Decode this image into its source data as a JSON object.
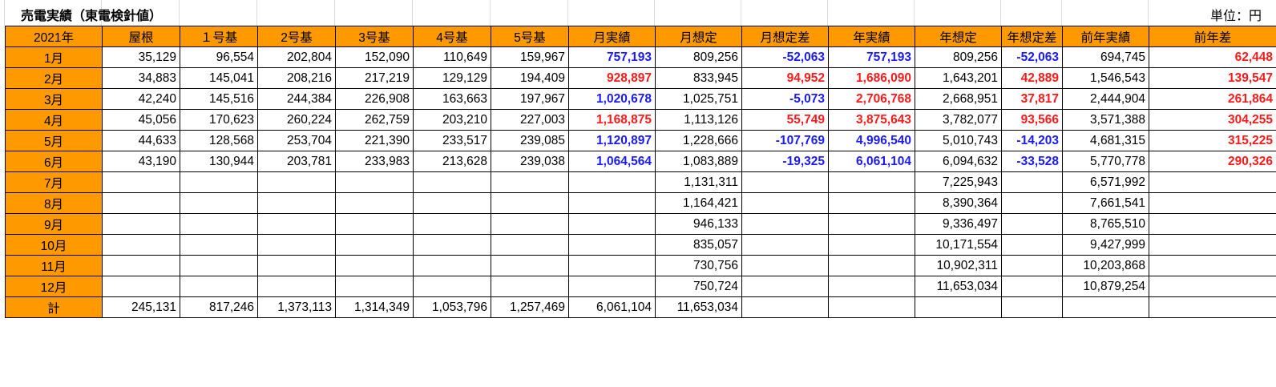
{
  "header": {
    "title": "売電実績（東電検針値）",
    "unit": "単位：円"
  },
  "colors": {
    "header_fill": "#ff9900",
    "negative_blue": "#1a1aff",
    "positive_red": "#ff1a1a",
    "grid": "#000000"
  },
  "table": {
    "columns": [
      "2021年",
      "屋根",
      "１号基",
      "2号基",
      "3号基",
      "4号基",
      "5号基",
      "月実績",
      "月想定",
      "月想定差",
      "年実績",
      "年想定",
      "年想定差",
      "前年実績",
      "前年差"
    ],
    "rows": [
      {
        "label": "1月",
        "cells": [
          "35,129",
          "96,554",
          "202,804",
          "152,090",
          "110,649",
          "159,967",
          "757,193",
          "809,256",
          "-52,063",
          "757,193",
          "809,256",
          "-52,063",
          "694,745",
          "62,448"
        ],
        "styles": [
          "",
          "",
          "",
          "",
          "",
          "",
          "blue",
          "",
          "blue",
          "blue",
          "",
          "blue",
          "",
          "red"
        ]
      },
      {
        "label": "2月",
        "cells": [
          "34,883",
          "145,041",
          "208,216",
          "217,219",
          "129,129",
          "194,409",
          "928,897",
          "833,945",
          "94,952",
          "1,686,090",
          "1,643,201",
          "42,889",
          "1,546,543",
          "139,547"
        ],
        "styles": [
          "",
          "",
          "",
          "",
          "",
          "",
          "red",
          "",
          "red",
          "red",
          "",
          "red",
          "",
          "red"
        ]
      },
      {
        "label": "3月",
        "cells": [
          "42,240",
          "145,516",
          "244,384",
          "226,908",
          "163,663",
          "197,967",
          "1,020,678",
          "1,025,751",
          "-5,073",
          "2,706,768",
          "2,668,951",
          "37,817",
          "2,444,904",
          "261,864"
        ],
        "styles": [
          "",
          "",
          "",
          "",
          "",
          "",
          "blue",
          "",
          "blue",
          "red",
          "",
          "red",
          "",
          "red"
        ]
      },
      {
        "label": "4月",
        "cells": [
          "45,056",
          "170,623",
          "260,224",
          "262,759",
          "203,210",
          "227,003",
          "1,168,875",
          "1,113,126",
          "55,749",
          "3,875,643",
          "3,782,077",
          "93,566",
          "3,571,388",
          "304,255"
        ],
        "styles": [
          "",
          "",
          "",
          "",
          "",
          "",
          "red",
          "",
          "red",
          "red",
          "",
          "red",
          "",
          "red"
        ]
      },
      {
        "label": "5月",
        "cells": [
          "44,633",
          "128,568",
          "253,704",
          "221,390",
          "233,517",
          "239,085",
          "1,120,897",
          "1,228,666",
          "-107,769",
          "4,996,540",
          "5,010,743",
          "-14,203",
          "4,681,315",
          "315,225"
        ],
        "styles": [
          "",
          "",
          "",
          "",
          "",
          "",
          "blue",
          "",
          "blue",
          "blue",
          "",
          "blue",
          "",
          "red"
        ]
      },
      {
        "label": "6月",
        "cells": [
          "43,190",
          "130,944",
          "203,781",
          "233,983",
          "213,628",
          "239,038",
          "1,064,564",
          "1,083,889",
          "-19,325",
          "6,061,104",
          "6,094,632",
          "-33,528",
          "5,770,778",
          "290,326"
        ],
        "styles": [
          "",
          "",
          "",
          "",
          "",
          "",
          "blue",
          "",
          "blue",
          "blue",
          "",
          "blue",
          "",
          "red"
        ]
      },
      {
        "label": "7月",
        "cells": [
          "",
          "",
          "",
          "",
          "",
          "",
          "",
          "1,131,311",
          "",
          "",
          "7,225,943",
          "",
          "6,571,992",
          ""
        ],
        "styles": [
          "",
          "",
          "",
          "",
          "",
          "",
          "",
          "",
          "",
          "",
          "",
          "",
          "",
          ""
        ]
      },
      {
        "label": "8月",
        "cells": [
          "",
          "",
          "",
          "",
          "",
          "",
          "",
          "1,164,421",
          "",
          "",
          "8,390,364",
          "",
          "7,661,541",
          ""
        ],
        "styles": [
          "",
          "",
          "",
          "",
          "",
          "",
          "",
          "",
          "",
          "",
          "",
          "",
          "",
          ""
        ]
      },
      {
        "label": "9月",
        "cells": [
          "",
          "",
          "",
          "",
          "",
          "",
          "",
          "946,133",
          "",
          "",
          "9,336,497",
          "",
          "8,765,510",
          ""
        ],
        "styles": [
          "",
          "",
          "",
          "",
          "",
          "",
          "",
          "",
          "",
          "",
          "",
          "",
          "",
          ""
        ]
      },
      {
        "label": "10月",
        "cells": [
          "",
          "",
          "",
          "",
          "",
          "",
          "",
          "835,057",
          "",
          "",
          "10,171,554",
          "",
          "9,427,999",
          ""
        ],
        "styles": [
          "",
          "",
          "",
          "",
          "",
          "",
          "",
          "",
          "",
          "",
          "",
          "",
          "",
          ""
        ]
      },
      {
        "label": "11月",
        "cells": [
          "",
          "",
          "",
          "",
          "",
          "",
          "",
          "730,756",
          "",
          "",
          "10,902,311",
          "",
          "10,203,868",
          ""
        ],
        "styles": [
          "",
          "",
          "",
          "",
          "",
          "",
          "",
          "",
          "",
          "",
          "",
          "",
          "",
          ""
        ]
      },
      {
        "label": "12月",
        "cells": [
          "",
          "",
          "",
          "",
          "",
          "",
          "",
          "750,724",
          "",
          "",
          "11,653,034",
          "",
          "10,879,254",
          ""
        ],
        "styles": [
          "",
          "",
          "",
          "",
          "",
          "",
          "",
          "",
          "",
          "",
          "",
          "",
          "",
          ""
        ]
      },
      {
        "label": "計",
        "cells": [
          "245,131",
          "817,246",
          "1,373,113",
          "1,314,349",
          "1,053,796",
          "1,257,469",
          "6,061,104",
          "11,653,034",
          "",
          "",
          "",
          "",
          "",
          ""
        ],
        "styles": [
          "",
          "",
          "",
          "",
          "",
          "",
          "",
          "",
          "",
          "",
          "",
          "",
          "",
          ""
        ]
      }
    ]
  }
}
